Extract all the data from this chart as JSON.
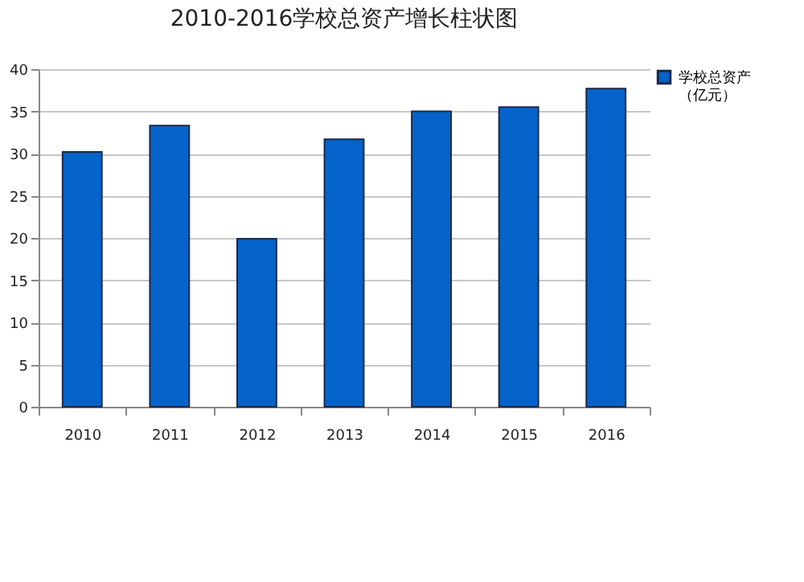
{
  "chart_data": {
    "type": "bar",
    "title": "2010-2016学校总资产增长柱状图",
    "categories": [
      "2010",
      "2011",
      "2012",
      "2013",
      "2014",
      "2015",
      "2016"
    ],
    "series": [
      {
        "name": "学校总资产（亿元）",
        "color": "#0563c9",
        "values": [
          30.2,
          33.3,
          19.9,
          31.7,
          35.0,
          35.5,
          37.7
        ]
      }
    ],
    "ylim": [
      0,
      40
    ],
    "yticks": [
      0,
      5,
      10,
      15,
      20,
      25,
      30,
      35,
      40
    ],
    "grid": "y",
    "legend": "right"
  }
}
